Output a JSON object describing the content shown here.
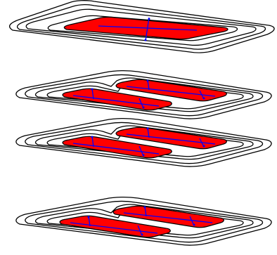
{
  "diagram": {
    "colors": {
      "background": "#ffffff",
      "outline": "#000000",
      "fill": "#ff0000",
      "axis": "#0000ff"
    },
    "layers": [
      {
        "name": "layer-1",
        "regions": 1
      },
      {
        "name": "layer-2",
        "regions": 2
      },
      {
        "name": "layer-3",
        "regions": 2
      },
      {
        "name": "layer-4",
        "regions": 2
      }
    ]
  }
}
